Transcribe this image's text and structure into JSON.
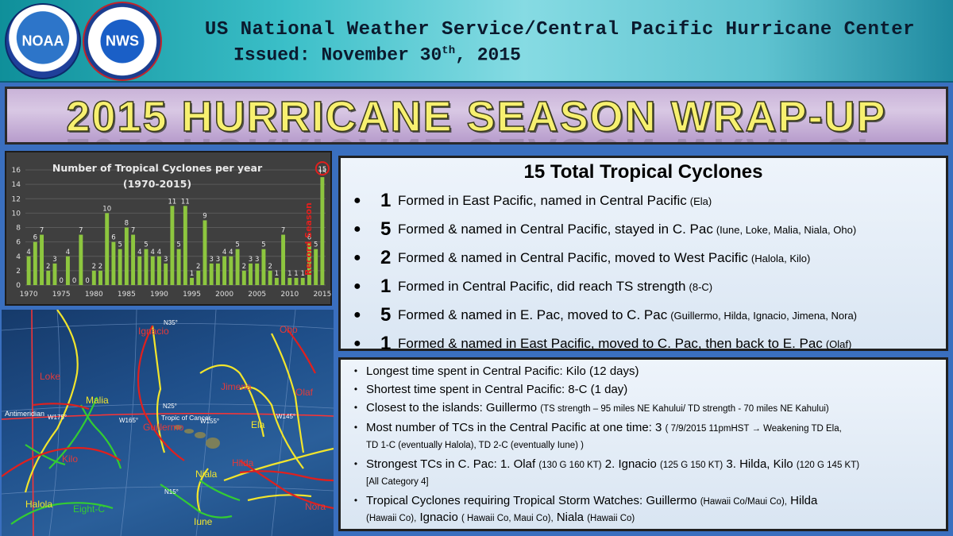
{
  "header": {
    "title": "US National Weather Service/Central Pacific Hurricane Center",
    "issued_prefix": "Issued: November 30",
    "issued_sup": "th",
    "issued_suffix": ", 2015",
    "logo_noaa": "NOAA",
    "logo_nws": "NWS"
  },
  "banner": {
    "title": "2015 HURRICANE SEASON WRAP-UP"
  },
  "chart_data": {
    "type": "bar",
    "title": "Number of Tropical Cyclones per year",
    "subtitle": "(1970-2015)",
    "x": [
      1970,
      1971,
      1972,
      1973,
      1974,
      1975,
      1976,
      1977,
      1978,
      1979,
      1980,
      1981,
      1982,
      1983,
      1984,
      1985,
      1986,
      1987,
      1988,
      1989,
      1990,
      1991,
      1992,
      1993,
      1994,
      1995,
      1996,
      1997,
      1998,
      1999,
      2000,
      2001,
      2002,
      2003,
      2004,
      2005,
      2006,
      2007,
      2008,
      2009,
      2010,
      2011,
      2012,
      2013,
      2014,
      2015
    ],
    "values": [
      4,
      6,
      7,
      2,
      3,
      0,
      4,
      0,
      7,
      0,
      2,
      2,
      10,
      6,
      5,
      8,
      7,
      4,
      5,
      4,
      4,
      3,
      11,
      5,
      11,
      1,
      2,
      9,
      3,
      3,
      4,
      4,
      5,
      2,
      3,
      3,
      5,
      2,
      1,
      7,
      1,
      1,
      1,
      6,
      5,
      15
    ],
    "xticks": [
      1970,
      1975,
      1980,
      1985,
      1990,
      1995,
      2000,
      2005,
      2010,
      2015
    ],
    "yticks": [
      0,
      2,
      4,
      6,
      8,
      10,
      12,
      14,
      16
    ],
    "ylim": [
      0,
      16
    ],
    "bar_color": "#8dc63f",
    "grid": true,
    "highlight": {
      "year": 2015,
      "value": 15,
      "label": "Record Season",
      "color": "#e0201e"
    }
  },
  "map": {
    "labels": {
      "ignacio": "Ignacio",
      "oho": "Oho",
      "loke": "Loke",
      "malia": "Malia",
      "jimena": "Jimena",
      "olaf": "Olaf",
      "antimeridian": "Antimeridian",
      "ela": "Ela",
      "tropic": "Tropic of Cancer",
      "guillermo": "Guillermo",
      "kilo": "Kilo",
      "hilda": "Hilda",
      "niala": "Niala",
      "halola": "Halola",
      "eight_c": "Eight-C",
      "iune": "Iune",
      "nora": "Nora"
    },
    "gridlabels": {
      "n35": "N35°",
      "n25": "N25°",
      "n15": "N15°",
      "w175": "W175°",
      "w165": "W165°",
      "w155": "W155°",
      "w145": "W145°"
    }
  },
  "summary": {
    "heading": "15 Total Tropical Cyclones",
    "items": [
      {
        "count": "1",
        "text": "Formed in East Pacific, named in Central Pacific",
        "names": "(Ela)"
      },
      {
        "count": "5",
        "text": "Formed & named in Central Pacific, stayed in C. Pac",
        "names": "(Iune, Loke, Malia, Niala, Oho)"
      },
      {
        "count": "2",
        "text": "Formed & named in Central Pacific, moved to West Pacific",
        "names": "(Halola, Kilo)"
      },
      {
        "count": "1",
        "text": "Formed in Central Pacific, did reach TS strength",
        "names": "(8-C)"
      },
      {
        "count": "5",
        "text": "Formed & named in E. Pac, moved to C. Pac",
        "names": "(Guillermo, Hilda, Ignacio, Jimena, Nora)"
      },
      {
        "count": "1",
        "text": "Formed & named in East Pacific, moved to C. Pac, then back to E. Pac",
        "names": "(Olaf)"
      }
    ]
  },
  "facts": {
    "longest": "Longest time spent in Central Pacific: Kilo (12 days)",
    "shortest": "Shortest time spent in Central Pacific: 8-C (1 day)",
    "closest_main": "Closest to the islands: Guillermo",
    "closest_detail": "(TS strength – 95 miles NE Kahului/ TD strength  - 70 miles NE Kahului)",
    "most_main": "Most number of TCs in the Central Pacific at one time: 3",
    "most_detail1": "( 7/9/2015 11pmHST → Weakening TD Ela,",
    "most_detail2": "TD 1-C (eventually Halola), TD 2-C (eventually Iune) )",
    "strongest_a": "Strongest TCs in C. Pac: 1. Olaf",
    "strongest_a_detail": "(130 G 160 KT)",
    "strongest_b": "2. Ignacio",
    "strongest_b_detail": "(125 G 150 KT)",
    "strongest_c": "3. Hilda, Kilo",
    "strongest_c_detail": "(120 G 145 KT)",
    "strongest_note": "[All Category 4]",
    "watches_a": "Tropical Cyclones requiring Tropical Storm Watches: Guillermo",
    "watches_a_detail": "(Hawaii Co/Maui Co),",
    "watches_b": "Hilda",
    "watches_b_detail": "(Hawaii Co),",
    "watches_c": "Ignacio",
    "watches_c_detail": "( Hawaii Co, Maui Co),",
    "watches_d": "Niala",
    "watches_d_detail": "(Hawaii Co)"
  }
}
